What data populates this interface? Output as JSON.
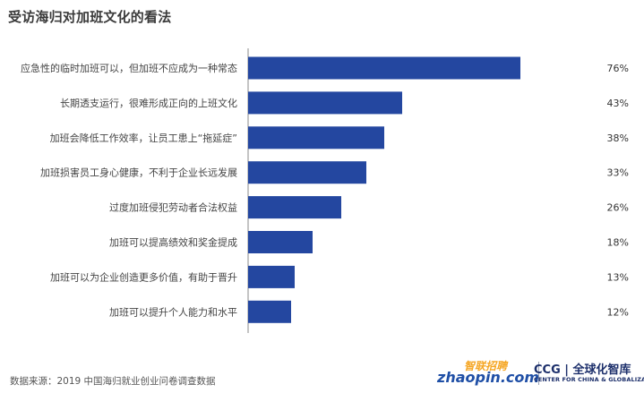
{
  "chart_data": {
    "type": "bar",
    "orientation": "horizontal",
    "title": "受访海归对加班文化的看法",
    "categories": [
      "应急性的临时加班可以，但加班不应成为一种常态",
      "长期透支运行，很难形成正向的上班文化",
      "加班会降低工作效率，让员工患上“拖延症”",
      "加班损害员工身心健康，不利于企业长远发展",
      "过度加班侵犯劳动者合法权益",
      "加班可以提高绩效和奖金提成",
      "加班可以为企业创造更多价值，有助于晋升",
      "加班可以提升个人能力和水平"
    ],
    "values": [
      76,
      43,
      38,
      33,
      26,
      18,
      13,
      12
    ],
    "value_labels": [
      "76%",
      "43%",
      "38%",
      "33%",
      "26%",
      "18%",
      "13%",
      "12%"
    ],
    "unit": "%",
    "xlim": [
      0,
      100
    ],
    "grid": false,
    "bar_color": "#2447a0"
  },
  "footer": {
    "source": "数据来源：2019 中国海归就业创业问卷调查数据"
  },
  "logos": {
    "zhaopin_cn": "智联招聘",
    "zhaopin_en": "zhaopin.com",
    "ccg_main": "CCG | 全球化智库",
    "ccg_sub": "CENTER FOR CHINA & GLOBALIZATION"
  }
}
